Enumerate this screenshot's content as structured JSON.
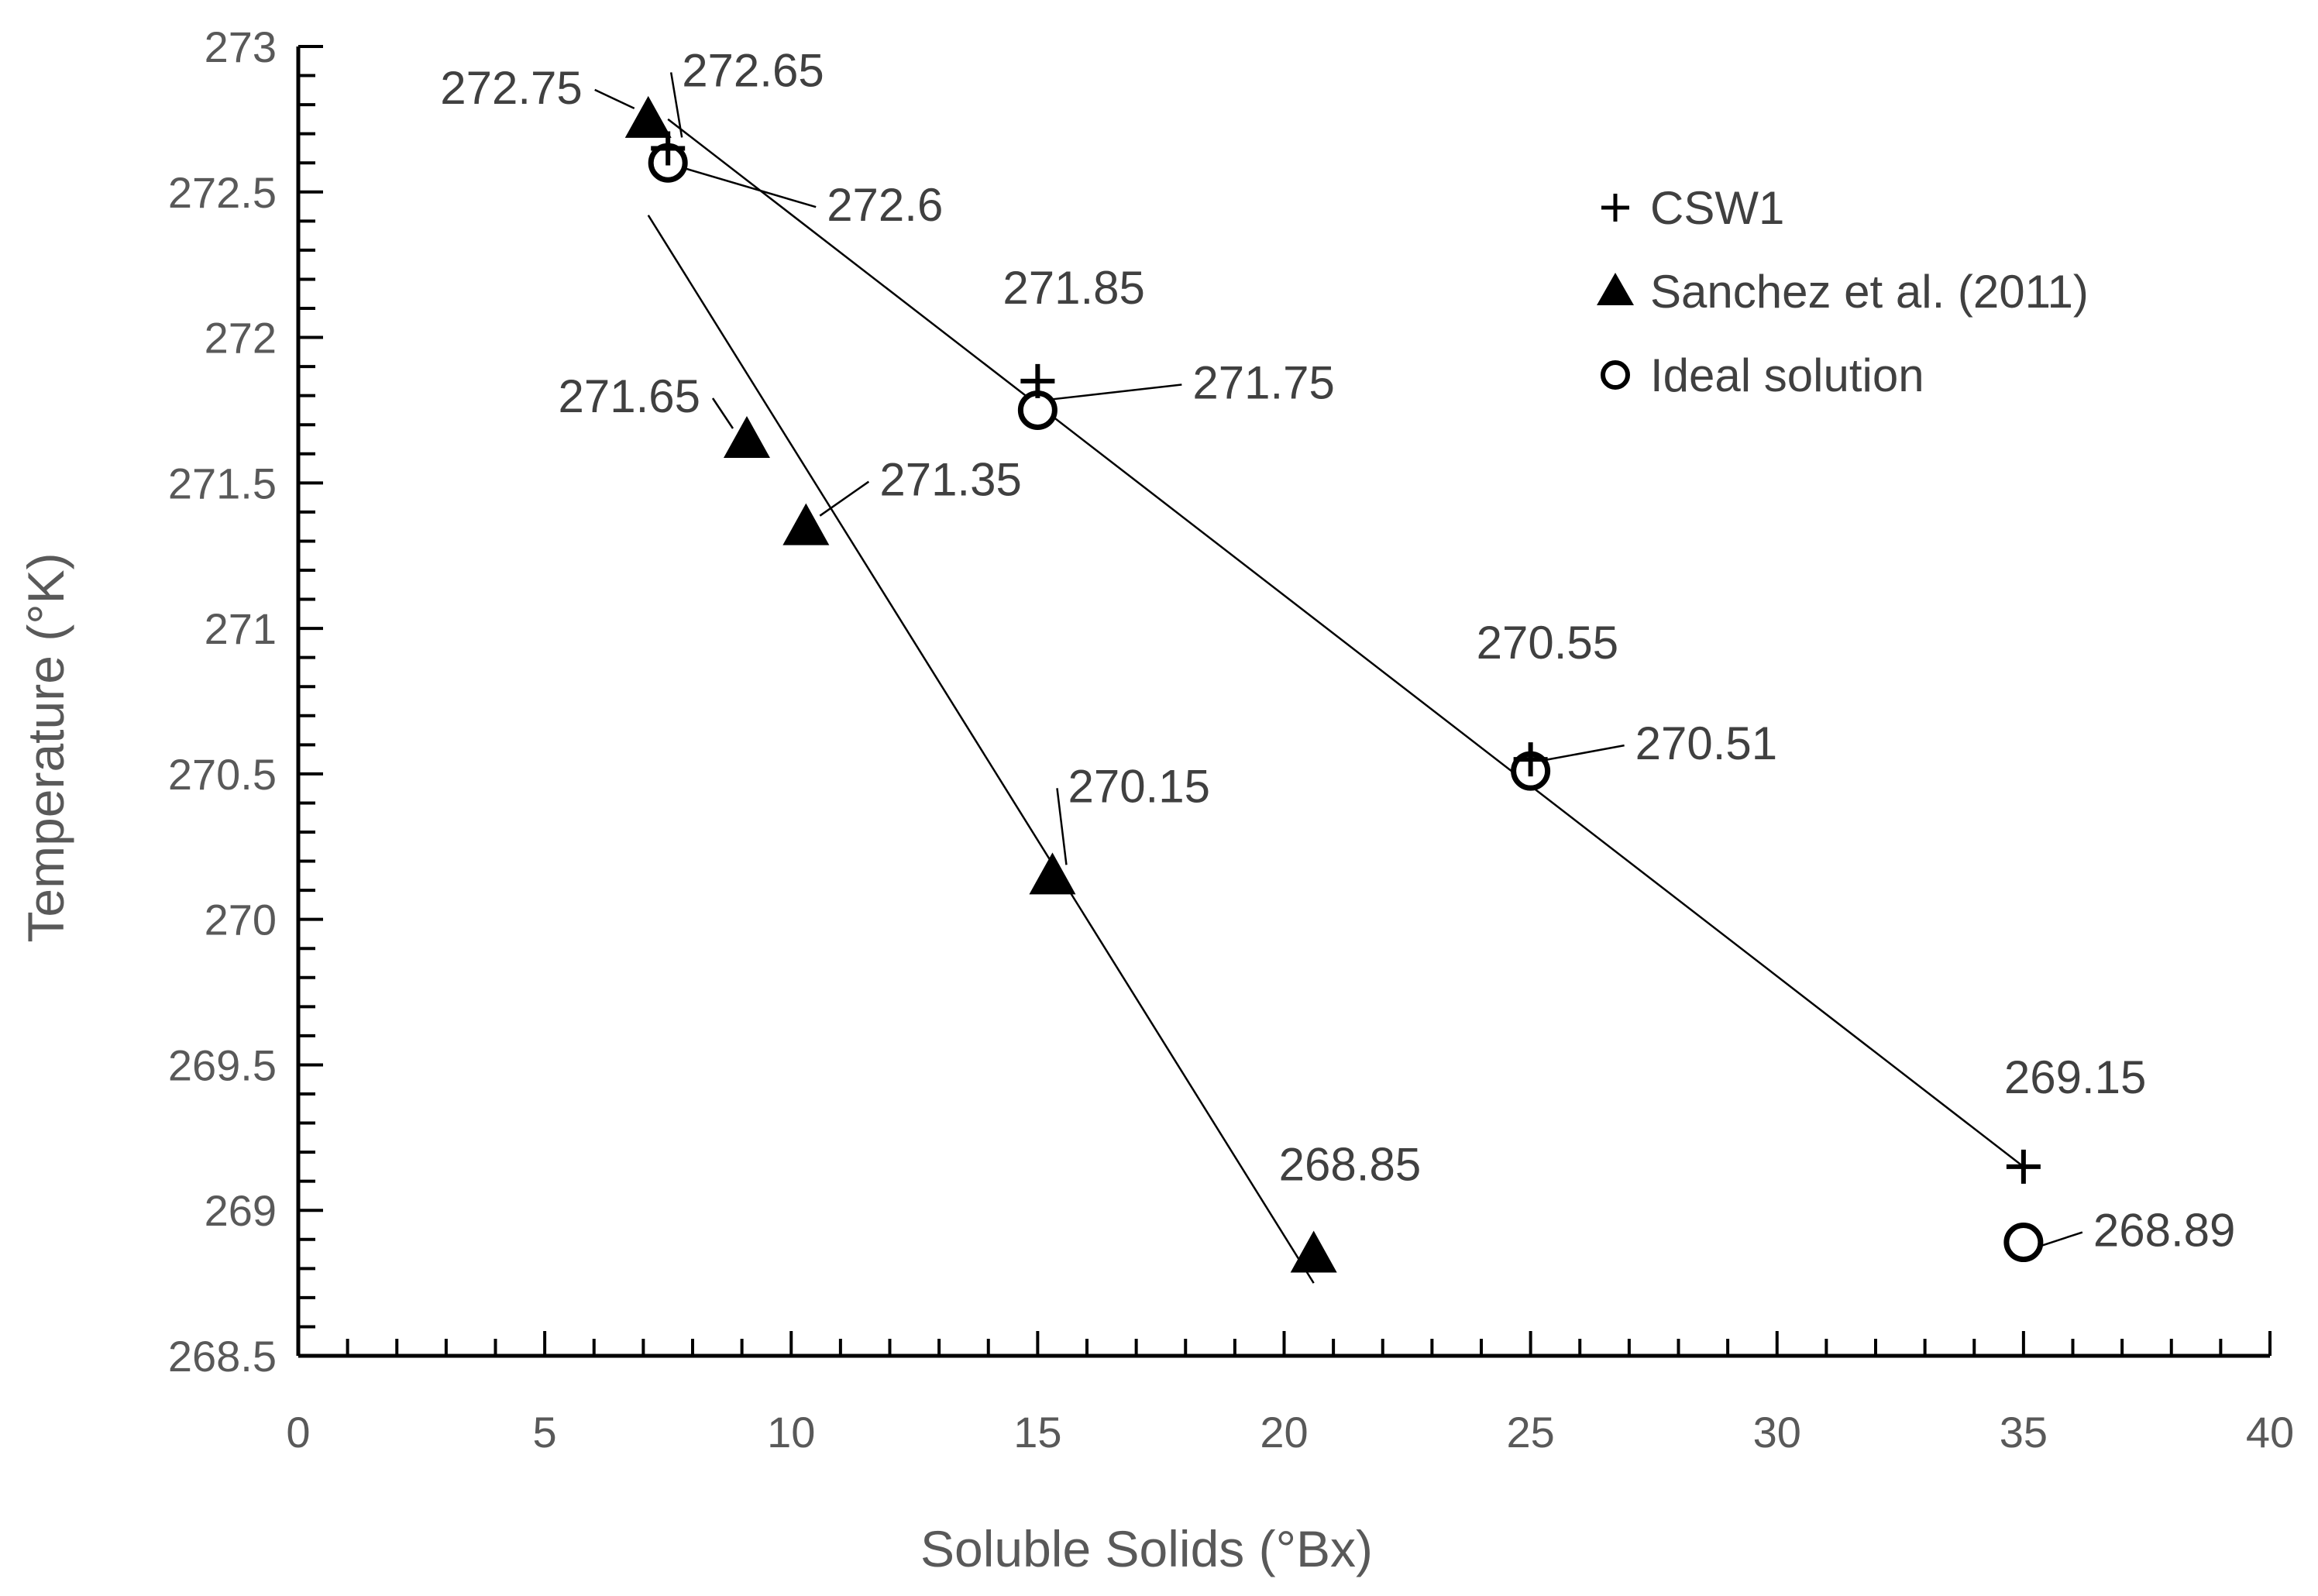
{
  "chart_data": {
    "type": "scatter",
    "xlabel": "Soluble Solids (°Bx)",
    "ylabel": "Temperature (°K)",
    "xlim": [
      0,
      40
    ],
    "ylim": [
      268.5,
      273
    ],
    "x_ticks": [
      "0",
      "5",
      "10",
      "15",
      "20",
      "25",
      "30",
      "35",
      "40"
    ],
    "y_ticks": [
      "268.5",
      "269",
      "269.5",
      "270",
      "270.5",
      "271",
      "271.5",
      "272",
      "272.5",
      "273"
    ],
    "grid": false,
    "legend_position": "top-right",
    "series": [
      {
        "name": "CSW1",
        "marker": "plus",
        "points": [
          {
            "x": 7.5,
            "y": 272.65,
            "label": "272.65"
          },
          {
            "x": 15,
            "y": 271.85,
            "label": "271.85"
          },
          {
            "x": 25,
            "y": 270.55,
            "label": "270.55"
          },
          {
            "x": 35,
            "y": 269.15,
            "label": "269.15"
          }
        ]
      },
      {
        "name": "Sanchez et al. (2011)",
        "marker": "triangle",
        "points": [
          {
            "x": 7.1,
            "y": 272.75,
            "label": "272.75"
          },
          {
            "x": 9.1,
            "y": 271.65,
            "label": "271.65"
          },
          {
            "x": 10.3,
            "y": 271.35,
            "label": "271.35"
          },
          {
            "x": 15.3,
            "y": 270.15,
            "label": "270.15"
          },
          {
            "x": 20.6,
            "y": 268.85,
            "label": "268.85"
          }
        ]
      },
      {
        "name": "Ideal solution",
        "marker": "circle",
        "points": [
          {
            "x": 7.5,
            "y": 272.6,
            "label": "272.6"
          },
          {
            "x": 15,
            "y": 271.75,
            "label": "271.75"
          },
          {
            "x": 25,
            "y": 270.51,
            "label": "270.51"
          },
          {
            "x": 35,
            "y": 268.89,
            "label": "268.89"
          }
        ]
      }
    ],
    "trendlines": [
      {
        "x1": 7.5,
        "y1": 272.75,
        "x2": 35,
        "y2": 269.15
      },
      {
        "x1": 7.1,
        "y1": 272.42,
        "x2": 20.6,
        "y2": 268.75
      }
    ]
  }
}
